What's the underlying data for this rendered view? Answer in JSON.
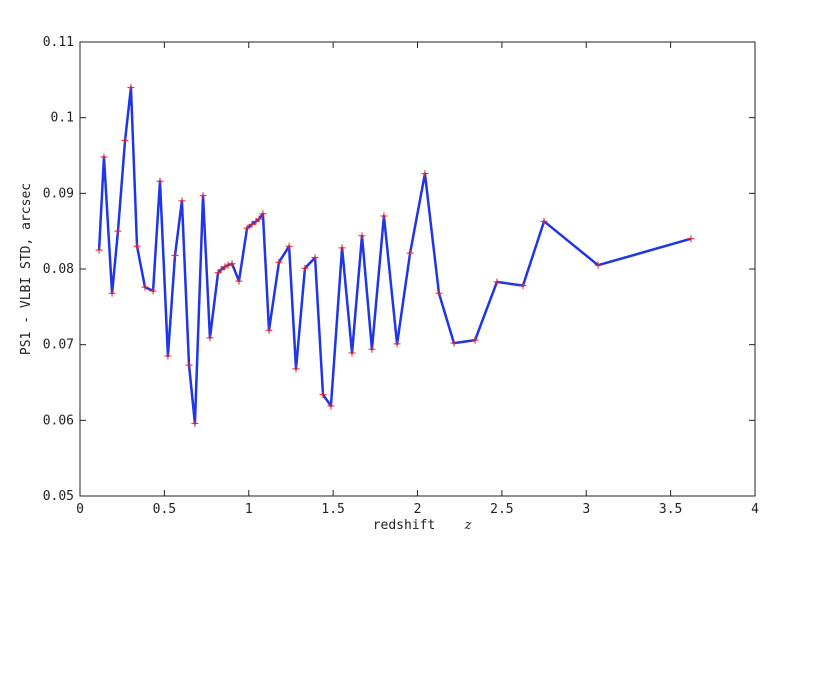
{
  "chart_data": {
    "type": "line",
    "ylabel": "PS1 - VLBI STD, arcsec",
    "xlabel": "redshift",
    "xlabel_symbol": "z",
    "x": [
      0.113,
      0.142,
      0.19,
      0.225,
      0.267,
      0.302,
      0.338,
      0.385,
      0.433,
      0.474,
      0.521,
      0.563,
      0.604,
      0.646,
      0.681,
      0.729,
      0.77,
      0.818,
      0.836,
      0.859,
      0.877,
      0.901,
      0.942,
      0.99,
      1.019,
      1.043,
      1.061,
      1.084,
      1.12,
      1.179,
      1.239,
      1.28,
      1.333,
      1.393,
      1.44,
      1.487,
      1.553,
      1.612,
      1.671,
      1.73,
      1.801,
      1.879,
      1.956,
      2.044,
      2.127,
      2.216,
      2.341,
      2.471,
      2.625,
      2.75,
      3.07,
      3.621
    ],
    "values": [
      0.0825,
      0.0948,
      0.0768,
      0.085,
      0.097,
      0.104,
      0.083,
      0.0776,
      0.0771,
      0.0916,
      0.0685,
      0.0818,
      0.089,
      0.0673,
      0.0596,
      0.0897,
      0.0709,
      0.0795,
      0.0799,
      0.0803,
      0.0805,
      0.0807,
      0.0784,
      0.0854,
      0.0859,
      0.0863,
      0.0866,
      0.0873,
      0.0719,
      0.0809,
      0.083,
      0.0668,
      0.0801,
      0.0815,
      0.0634,
      0.0619,
      0.0828,
      0.0689,
      0.0844,
      0.0694,
      0.087,
      0.0701,
      0.0821,
      0.0926,
      0.0768,
      0.0702,
      0.0706,
      0.0783,
      0.0778,
      0.0863,
      0.0805,
      0.084
    ],
    "color": "#1f35e8",
    "marker_color": "#e8202a",
    "xlim": [
      0,
      4
    ],
    "xticks": [
      0,
      0.5,
      1,
      1.5,
      2,
      2.5,
      3,
      3.5,
      4
    ],
    "ylim": [
      0.05,
      0.11
    ],
    "yticks": [
      0.05,
      0.06,
      0.07,
      0.08,
      0.09,
      0.1,
      0.11
    ],
    "grid": false
  }
}
